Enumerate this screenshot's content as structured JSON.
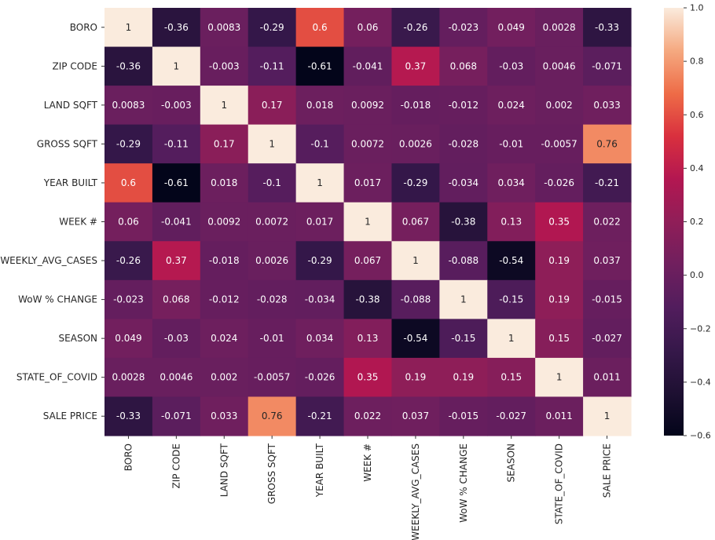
{
  "chart_data": {
    "type": "heatmap",
    "title": "",
    "xlabel": "",
    "ylabel": "",
    "labels": [
      "BORO",
      "ZIP CODE",
      "LAND SQFT",
      "GROSS SQFT",
      "YEAR BUILT",
      "WEEK #",
      "WEEKLY_AVG_CASES",
      "WoW % CHANGE",
      "SEASON",
      "STATE_OF_COVID",
      "SALE PRICE"
    ],
    "values": [
      [
        "1",
        "-0.36",
        "0.0083",
        "-0.29",
        "0.6",
        "0.06",
        "-0.26",
        "-0.023",
        "0.049",
        "0.0028",
        "-0.33"
      ],
      [
        "-0.36",
        "1",
        "-0.003",
        "-0.11",
        "-0.61",
        "-0.041",
        "0.37",
        "0.068",
        "-0.03",
        "0.0046",
        "-0.071"
      ],
      [
        "0.0083",
        "-0.003",
        "1",
        "0.17",
        "0.018",
        "0.0092",
        "-0.018",
        "-0.012",
        "0.024",
        "0.002",
        "0.033"
      ],
      [
        "-0.29",
        "-0.11",
        "0.17",
        "1",
        "-0.1",
        "0.0072",
        "0.0026",
        "-0.028",
        "-0.01",
        "-0.0057",
        "0.76"
      ],
      [
        "0.6",
        "-0.61",
        "0.018",
        "-0.1",
        "1",
        "0.017",
        "-0.29",
        "-0.034",
        "0.034",
        "-0.026",
        "-0.21"
      ],
      [
        "0.06",
        "-0.041",
        "0.0092",
        "0.0072",
        "0.017",
        "1",
        "0.067",
        "-0.38",
        "0.13",
        "0.35",
        "0.022"
      ],
      [
        "-0.26",
        "0.37",
        "-0.018",
        "0.0026",
        "-0.29",
        "0.067",
        "1",
        "-0.088",
        "-0.54",
        "0.19",
        "0.037"
      ],
      [
        "-0.023",
        "0.068",
        "-0.012",
        "-0.028",
        "-0.034",
        "-0.38",
        "-0.088",
        "1",
        "-0.15",
        "0.19",
        "-0.015"
      ],
      [
        "0.049",
        "-0.03",
        "0.024",
        "-0.01",
        "0.034",
        "0.13",
        "-0.54",
        "-0.15",
        "1",
        "0.15",
        "-0.027"
      ],
      [
        "0.0028",
        "0.0046",
        "0.002",
        "-0.0057",
        "-0.026",
        "0.35",
        "0.19",
        "0.19",
        "0.15",
        "1",
        "0.011"
      ],
      [
        "-0.33",
        "-0.071",
        "0.033",
        "0.76",
        "-0.21",
        "0.022",
        "0.037",
        "-0.015",
        "-0.027",
        "0.011",
        "1"
      ]
    ],
    "colorbar": {
      "range": [
        -0.6,
        1.0
      ],
      "ticks": [
        "1.0",
        "0.8",
        "0.6",
        "0.4",
        "0.2",
        "0.0",
        "−0.2",
        "−0.4",
        "−0.6"
      ],
      "colormap": "rocket"
    },
    "grid": false,
    "legend": "colorbar at right"
  }
}
